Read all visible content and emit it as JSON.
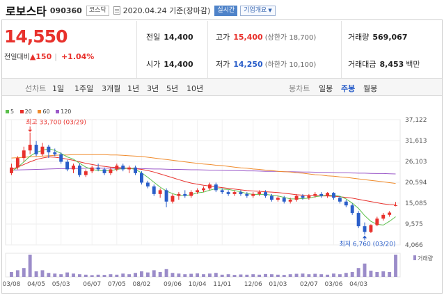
{
  "stock": {
    "name": "로보스타",
    "code": "090360",
    "market": "코스닥",
    "date_text": "2020.04.24 기준(장마감)",
    "live_label": "실시간",
    "info_label": "기업개요"
  },
  "price": {
    "current": "14,550",
    "change_label": "전일대비",
    "change_value": "▲150",
    "change_percent": "+1.04%"
  },
  "stats": {
    "prev_close": {
      "label": "전일",
      "value": "14,400"
    },
    "high": {
      "label": "고가",
      "value": "15,400",
      "note": "(상한가 18,700)"
    },
    "volume": {
      "label": "거래량",
      "value": "569,067"
    },
    "open": {
      "label": "시가",
      "value": "14,400"
    },
    "low": {
      "label": "저가",
      "value": "14,250",
      "note": "(하한가 10,100)"
    },
    "amount": {
      "label": "거래대금",
      "value": "8,453",
      "unit": "백만"
    }
  },
  "period_bar": {
    "left_heading": "선차트",
    "left_options": [
      "1일",
      "1주일",
      "3개월",
      "1년",
      "3년",
      "5년",
      "10년"
    ],
    "right_heading": "봉차트",
    "right_options": [
      "일봉",
      "주봉",
      "월봉"
    ],
    "active_option": "주봉"
  },
  "colors": {
    "up": "#e8312c",
    "down": "#2a5ec9",
    "ma5": "#5cc04c",
    "ma20": "#e8312c",
    "ma60": "#f08b2c",
    "ma120": "#9b59c9",
    "volume_bar": "#9b8cc9"
  },
  "chart_data": {
    "type": "candlestick",
    "interval": "weekly",
    "legend": [
      "5",
      "20",
      "60",
      "120"
    ],
    "y_ticks": [
      4066,
      9575,
      15085,
      20594,
      26103,
      31613,
      37122
    ],
    "ylim": [
      4066,
      37122
    ],
    "x_tick_labels": [
      "03/08",
      "04/05",
      "05/03",
      "06/07",
      "07/05",
      "08/02",
      "09/06",
      "10/04",
      "11/01",
      "12/06",
      "01/03",
      "02/07",
      "03/06",
      "04/03"
    ],
    "high_annotation": "최고 33,700 (03/29)",
    "low_annotation": "최저 6,760 (03/20)",
    "volume_label": "거래량",
    "ohlc": [
      [
        23000,
        25500,
        22500,
        24500
      ],
      [
        24500,
        27500,
        24000,
        27000
      ],
      [
        27000,
        30000,
        26000,
        29000
      ],
      [
        29000,
        33700,
        28000,
        30500
      ],
      [
        30500,
        31500,
        27500,
        28000
      ],
      [
        28000,
        31000,
        27500,
        30000
      ],
      [
        30000,
        30500,
        27000,
        28500
      ],
      [
        28500,
        29500,
        27500,
        28000
      ],
      [
        28000,
        28500,
        25500,
        26000
      ],
      [
        26000,
        26500,
        23500,
        24000
      ],
      [
        24000,
        25500,
        23000,
        25000
      ],
      [
        25000,
        25500,
        22000,
        22500
      ],
      [
        22500,
        24000,
        22000,
        23500
      ],
      [
        23500,
        25000,
        23000,
        24500
      ],
      [
        24500,
        25500,
        23500,
        24000
      ],
      [
        24000,
        24500,
        22500,
        23000
      ],
      [
        23000,
        24500,
        22500,
        24000
      ],
      [
        24000,
        25500,
        23500,
        25000
      ],
      [
        25000,
        25500,
        23500,
        24000
      ],
      [
        24000,
        25000,
        23000,
        24500
      ],
      [
        24500,
        25000,
        22500,
        23000
      ],
      [
        23000,
        23500,
        20000,
        20500
      ],
      [
        20500,
        21000,
        19000,
        19500
      ],
      [
        19500,
        20000,
        17000,
        17500
      ],
      [
        17500,
        19000,
        16500,
        18500
      ],
      [
        18500,
        19000,
        14000,
        15500
      ],
      [
        15500,
        17500,
        15000,
        17000
      ],
      [
        17000,
        18000,
        16000,
        17500
      ],
      [
        17500,
        18500,
        16500,
        17000
      ],
      [
        17000,
        18500,
        16500,
        18000
      ],
      [
        18000,
        19000,
        17500,
        18500
      ],
      [
        18500,
        19500,
        18000,
        19000
      ],
      [
        19000,
        20500,
        18500,
        20000
      ],
      [
        20000,
        20500,
        18000,
        18500
      ],
      [
        18500,
        19000,
        17500,
        18000
      ],
      [
        18000,
        18500,
        17000,
        17500
      ],
      [
        17500,
        18500,
        17000,
        18000
      ],
      [
        18000,
        18500,
        17000,
        17500
      ],
      [
        17500,
        18000,
        16500,
        17000
      ],
      [
        17000,
        18000,
        16500,
        17500
      ],
      [
        17500,
        18500,
        17000,
        18000
      ],
      [
        18000,
        18500,
        16500,
        17000
      ],
      [
        17000,
        17500,
        15500,
        16000
      ],
      [
        16000,
        17000,
        15500,
        16500
      ],
      [
        16500,
        17000,
        15000,
        15500
      ],
      [
        15500,
        16500,
        15000,
        16000
      ],
      [
        16000,
        17500,
        15500,
        17000
      ],
      [
        17000,
        17500,
        16000,
        16500
      ],
      [
        16500,
        17500,
        16000,
        17000
      ],
      [
        17000,
        18000,
        16500,
        17500
      ],
      [
        17500,
        18000,
        16500,
        17000
      ],
      [
        17000,
        18000,
        16500,
        17800
      ],
      [
        17800,
        18000,
        16000,
        16500
      ],
      [
        16500,
        17000,
        15000,
        15500
      ],
      [
        15500,
        16000,
        14000,
        14500
      ],
      [
        14500,
        15000,
        12000,
        12500
      ],
      [
        12500,
        13000,
        8500,
        9000
      ],
      [
        9000,
        10000,
        6760,
        7500
      ],
      [
        7500,
        9500,
        7200,
        9300
      ],
      [
        9300,
        11500,
        9000,
        11000
      ],
      [
        11000,
        12500,
        10500,
        12000
      ],
      [
        12000,
        13000,
        11500,
        12600
      ],
      [
        14400,
        15400,
        14250,
        14550
      ]
    ],
    "ma5": [
      23500,
      24500,
      26000,
      27500,
      28500,
      29000,
      29500,
      29000,
      28200,
      27300,
      26700,
      25600,
      24600,
      24000,
      23700,
      23600,
      23700,
      24000,
      24200,
      24300,
      24000,
      23100,
      21900,
      20600,
      19300,
      18300,
      17600,
      17100,
      17100,
      17300,
      17800,
      18000,
      18500,
      18900,
      18800,
      18700,
      18400,
      18100,
      17600,
      17400,
      17400,
      17400,
      17200,
      17000,
      16600,
      16200,
      16200,
      16300,
      16400,
      16800,
      17000,
      17200,
      17200,
      16900,
      16200,
      15100,
      13700,
      11800,
      10300,
      9500,
      9300,
      10300,
      11500
    ],
    "ma20": [
      24000,
      24600,
      25300,
      26000,
      26600,
      27000,
      27300,
      27200,
      27000,
      26700,
      26400,
      26000,
      25600,
      25300,
      25000,
      24800,
      24600,
      24500,
      24400,
      24300,
      24200,
      24000,
      23700,
      23300,
      22800,
      22300,
      21800,
      21300,
      20800,
      20400,
      20100,
      19800,
      19600,
      19400,
      19200,
      19000,
      18800,
      18600,
      18400,
      18300,
      18200,
      18100,
      18000,
      17900,
      17700,
      17500,
      17300,
      17200,
      17100,
      17100,
      17000,
      17000,
      16900,
      16800,
      16600,
      16400,
      16100,
      15800,
      15500,
      15200,
      14900,
      14700,
      14600
    ],
    "ma60": [
      27000,
      27100,
      27200,
      27300,
      27400,
      27500,
      27600,
      27700,
      27800,
      27800,
      27900,
      27900,
      27900,
      27900,
      27900,
      27900,
      27800,
      27800,
      27700,
      27600,
      27500,
      27400,
      27200,
      27000,
      26800,
      26600,
      26400,
      26200,
      26000,
      25800,
      25600,
      25400,
      25300,
      25100,
      25000,
      24800,
      24600,
      24400,
      24300,
      24100,
      24000,
      23800,
      23700,
      23500,
      23400,
      23300,
      23100,
      23000,
      22800,
      22600,
      22500,
      22300,
      22200,
      22000,
      21900,
      21700,
      21500,
      21300,
      21100,
      20900,
      20700,
      20500,
      20300
    ],
    "ma120": [
      23800,
      23850,
      23900,
      23950,
      24000,
      24050,
      24100,
      24150,
      24200,
      24200,
      24250,
      24250,
      24300,
      24300,
      24300,
      24300,
      24300,
      24250,
      24250,
      24250,
      24200,
      24200,
      24150,
      24100,
      24100,
      24050,
      24000,
      24000,
      23950,
      23900,
      23900,
      23850,
      23800,
      23800,
      23750,
      23700,
      23700,
      23650,
      23600,
      23600,
      23550,
      23500,
      23500,
      23450,
      23400,
      23400,
      23350,
      23300,
      23300,
      23250,
      23200,
      23200,
      23150,
      23100,
      23100,
      23050,
      23000,
      23000,
      22950,
      22900,
      22900,
      22850,
      22800
    ],
    "volume": [
      22,
      30,
      40,
      100,
      25,
      30,
      18,
      15,
      12,
      20,
      15,
      12,
      10,
      8,
      10,
      9,
      12,
      10,
      15,
      12,
      18,
      25,
      20,
      30,
      22,
      35,
      18,
      15,
      12,
      14,
      16,
      12,
      15,
      18,
      10,
      12,
      9,
      11,
      10,
      12,
      10,
      13,
      12,
      10,
      9,
      12,
      14,
      15,
      12,
      14,
      12,
      10,
      15,
      12,
      18,
      22,
      40,
      60,
      28,
      22,
      25,
      22,
      100
    ]
  }
}
